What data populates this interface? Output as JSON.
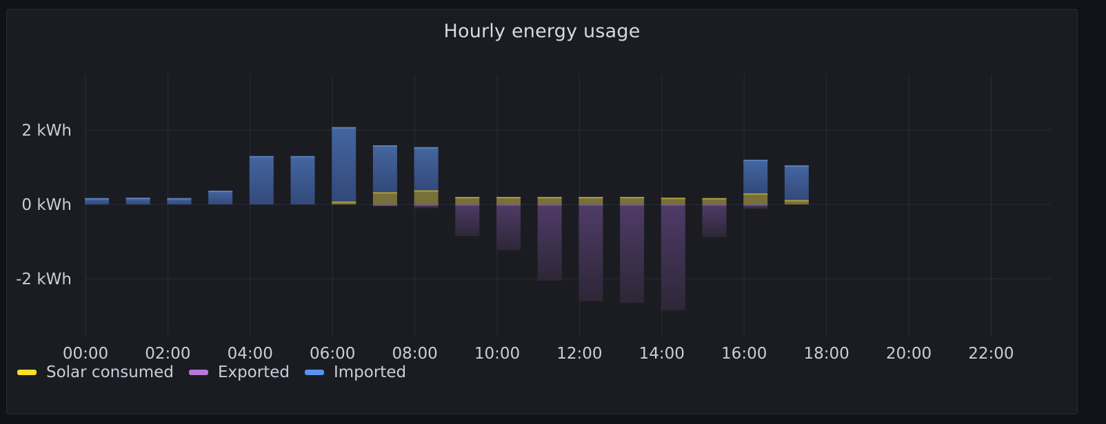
{
  "panel": {
    "title": "Hourly energy usage"
  },
  "chart_data": {
    "type": "bar",
    "stacked": true,
    "title": "Hourly energy usage",
    "unit": "kWh",
    "ylim": [
      -3.6,
      3.5
    ],
    "y_ticks": [
      {
        "value": 2,
        "label": "2 kWh"
      },
      {
        "value": 0,
        "label": "0 kWh"
      },
      {
        "value": -2,
        "label": "-2 kWh"
      }
    ],
    "x_ticks": [
      "00:00",
      "02:00",
      "04:00",
      "06:00",
      "08:00",
      "10:00",
      "12:00",
      "14:00",
      "16:00",
      "18:00",
      "20:00",
      "22:00"
    ],
    "categories": [
      "00:00",
      "01:00",
      "02:00",
      "03:00",
      "04:00",
      "05:00",
      "06:00",
      "07:00",
      "08:00",
      "09:00",
      "10:00",
      "11:00",
      "12:00",
      "13:00",
      "14:00",
      "15:00",
      "16:00",
      "17:00",
      "18:00",
      "19:00",
      "20:00",
      "21:00",
      "22:00",
      "23:00"
    ],
    "grid": true,
    "legend_position": "bottom-left",
    "series": [
      {
        "name": "Solar consumed",
        "color": "#fade2a",
        "values": [
          0,
          0,
          0,
          0,
          0,
          0,
          0.08,
          0.33,
          0.38,
          0.2,
          0.2,
          0.2,
          0.2,
          0.2,
          0.18,
          0.17,
          0.3,
          0.12,
          0,
          0,
          0,
          0,
          0,
          0
        ]
      },
      {
        "name": "Exported",
        "color": "#b877d9",
        "values": [
          0,
          0,
          0,
          0,
          0,
          0,
          0,
          -0.05,
          -0.1,
          -0.85,
          -1.23,
          -2.05,
          -2.6,
          -2.65,
          -2.85,
          -0.88,
          -0.12,
          0,
          0,
          0,
          0,
          0,
          0,
          0
        ]
      },
      {
        "name": "Imported",
        "color": "#5794f2",
        "values": [
          0.17,
          0.18,
          0.17,
          0.37,
          1.3,
          1.3,
          2.0,
          1.26,
          1.16,
          0,
          0,
          0,
          0,
          0,
          0,
          0,
          0.9,
          0.93,
          0,
          0,
          0,
          0,
          0,
          0
        ]
      }
    ]
  }
}
